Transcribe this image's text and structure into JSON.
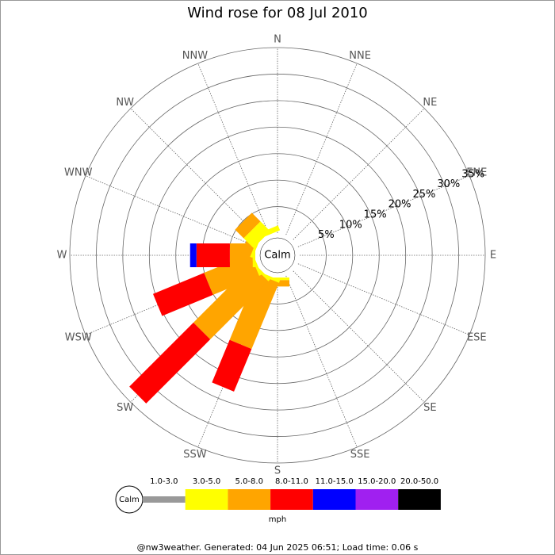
{
  "chart_data": {
    "type": "rose",
    "title": "Wind rose for 08 Jul 2010",
    "categories": [
      "N",
      "NNE",
      "NE",
      "ENE",
      "E",
      "ESE",
      "SE",
      "SSE",
      "S",
      "SSW",
      "SW",
      "WSW",
      "W",
      "WNW",
      "NW",
      "NNW"
    ],
    "center_label": "Calm",
    "legend_title": "mph",
    "rlim": [
      0,
      35
    ],
    "rticks": [
      {
        "value": 5,
        "label": "5%"
      },
      {
        "value": 10,
        "label": "10%"
      },
      {
        "value": 15,
        "label": "15%"
      },
      {
        "value": 20,
        "label": "20%"
      },
      {
        "value": 25,
        "label": "25%"
      },
      {
        "value": 30,
        "label": "30%"
      },
      {
        "value": 35,
        "label": "35%"
      }
    ],
    "grid": true,
    "series": [
      {
        "name": "1.0-3.0",
        "color": "#999999",
        "values": [
          0,
          0,
          0,
          0,
          0,
          0,
          0,
          0,
          0,
          0,
          0,
          0,
          0,
          0,
          0,
          0
        ]
      },
      {
        "name": "3.0-5.0",
        "color": "#ffff00",
        "values": [
          0,
          0,
          0,
          0,
          0,
          0,
          0,
          0,
          0.5,
          0.5,
          0.5,
          0.5,
          0.5,
          0.5,
          2.6,
          1.0
        ]
      },
      {
        "name": "5.0-8.0",
        "color": "#ffa500",
        "values": [
          0,
          0,
          0,
          0,
          0,
          0,
          0,
          0,
          1.2,
          13.5,
          15.5,
          9.4,
          4.3,
          1.8,
          2.3,
          0
        ]
      },
      {
        "name": "8.0-11.0",
        "color": "#ff0000",
        "values": [
          0,
          0,
          0,
          0,
          0,
          0,
          0,
          0,
          0,
          8.7,
          17.1,
          10.4,
          6.3,
          0,
          0,
          0
        ]
      },
      {
        "name": "11.0-15.0",
        "color": "#0000ff",
        "values": [
          0,
          0,
          0,
          0,
          0,
          0,
          0,
          0,
          0,
          0,
          0,
          0,
          1.2,
          0,
          0,
          0
        ]
      },
      {
        "name": "15.0-20.0",
        "color": "#a020f0",
        "values": [
          0,
          0,
          0,
          0,
          0,
          0,
          0,
          0,
          0,
          0,
          0,
          0,
          0,
          0,
          0,
          0
        ]
      },
      {
        "name": "20.0-50.0",
        "color": "#000000",
        "values": [
          0,
          0,
          0,
          0,
          0,
          0,
          0,
          0,
          0,
          0,
          0,
          0,
          0,
          0,
          0,
          0
        ]
      }
    ]
  },
  "footer": "@nw3weather. Generated: 04 Jun 2025 06:51; Load time: 0.06 s"
}
